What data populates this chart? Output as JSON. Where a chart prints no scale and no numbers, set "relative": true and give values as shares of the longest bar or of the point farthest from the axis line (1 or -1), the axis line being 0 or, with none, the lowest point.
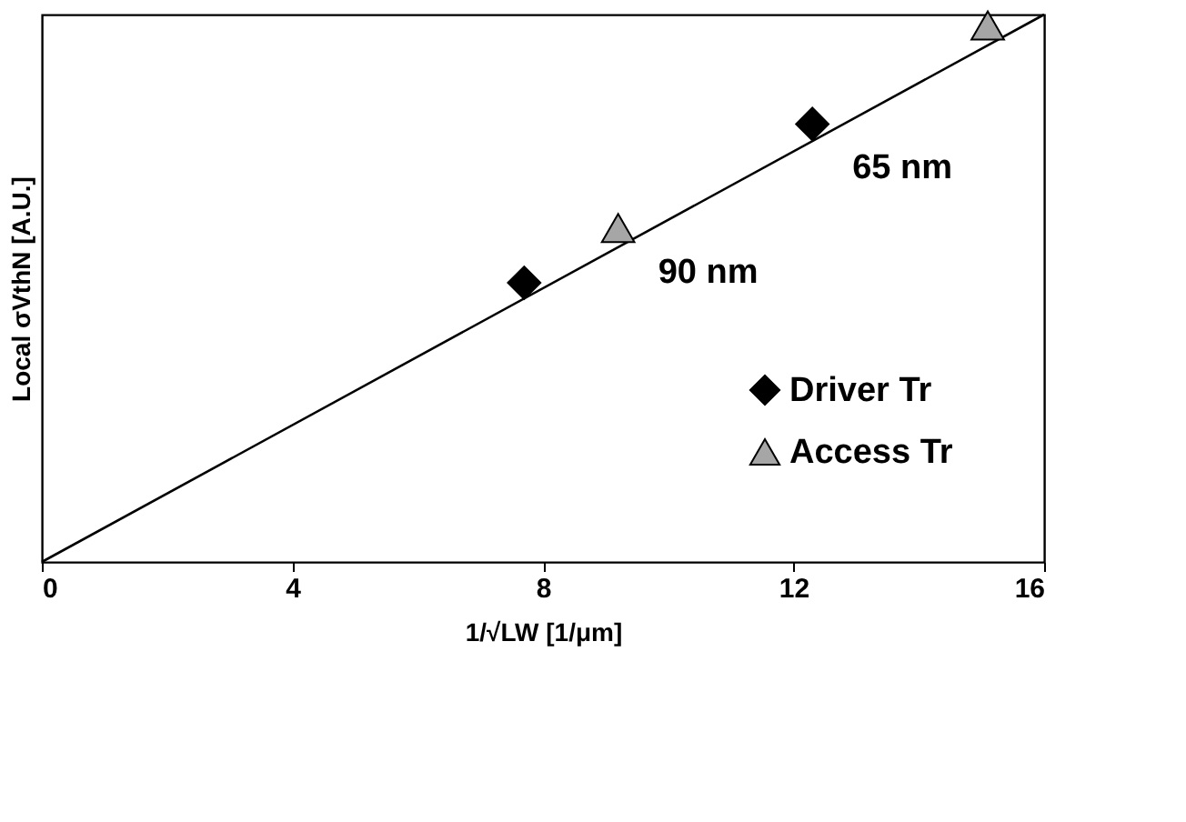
{
  "chart_data": {
    "type": "scatter",
    "xlabel": "1/√LW [1/μm]",
    "ylabel": "Local σVthN [A.U.]",
    "relative": true,
    "xlim": [
      0,
      16
    ],
    "xticks": [
      0,
      4,
      8,
      12,
      16
    ],
    "grid": false,
    "legend": "bottom right",
    "series": [
      {
        "type": "line",
        "color": "#000000",
        "x": [
          0,
          16
        ],
        "values": [
          0,
          1
        ],
        "marker": "none",
        "line_style": "solid"
      },
      {
        "name": "Driver Tr",
        "color": "#000000",
        "marker": "diamond",
        "x": [
          7.7,
          12.3
        ],
        "values": [
          0.51,
          0.8
        ]
      },
      {
        "name": "Access Tr",
        "color": "#a6a6a6",
        "marker": "triangle",
        "x": [
          9.2,
          15.1
        ],
        "values": [
          0.61,
          0.98
        ]
      }
    ],
    "annotations": [
      {
        "text": "90 nm",
        "x": 9.2,
        "y": 0.61
      },
      {
        "text": "65 nm",
        "x": 12.3,
        "y": 0.8
      }
    ]
  }
}
